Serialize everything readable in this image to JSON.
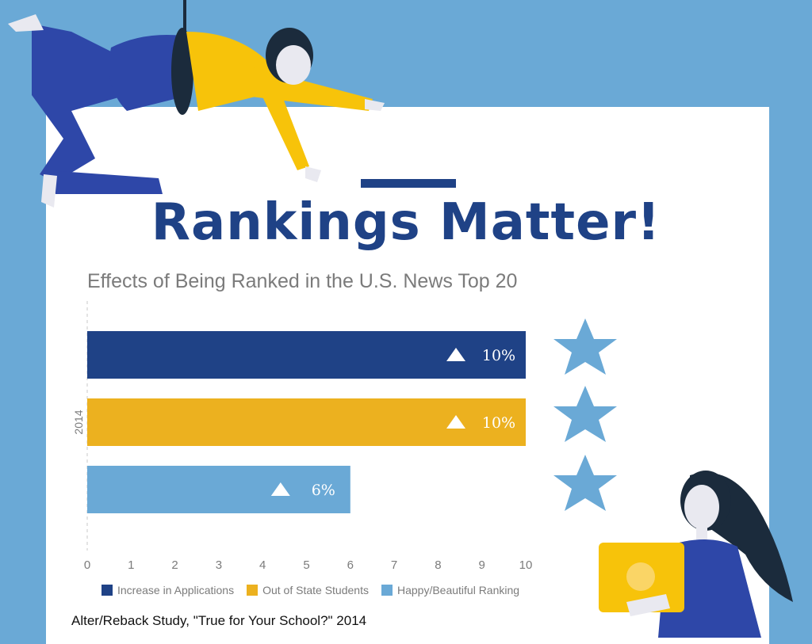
{
  "headline": "Rankings Matter!",
  "source": "Alter/Reback Study, \"True for Your School?\" 2014",
  "colors": {
    "background": "#6aa9d6",
    "navy": "#1f4286",
    "gold": "#ecb11f",
    "light_blue": "#6aa9d6"
  },
  "chart_data": {
    "type": "bar",
    "orientation": "horizontal",
    "title": "Effects of Being Ranked in the U.S. News Top 20",
    "categories": [
      "2014"
    ],
    "xlim": [
      0,
      10
    ],
    "xticks": [
      "0",
      "1",
      "2",
      "3",
      "4",
      "5",
      "6",
      "7",
      "8",
      "9",
      "10"
    ],
    "series": [
      {
        "name": "Increase in Applications",
        "values": [
          10
        ],
        "label": "10%",
        "color": "#1f4286"
      },
      {
        "name": "Out of State Students",
        "values": [
          10
        ],
        "label": "10%",
        "color": "#ecb11f"
      },
      {
        "name": "Happy/Beautiful Ranking",
        "values": [
          6
        ],
        "label": "6%",
        "color": "#6aa9d6"
      }
    ],
    "legend_position": "bottom"
  }
}
